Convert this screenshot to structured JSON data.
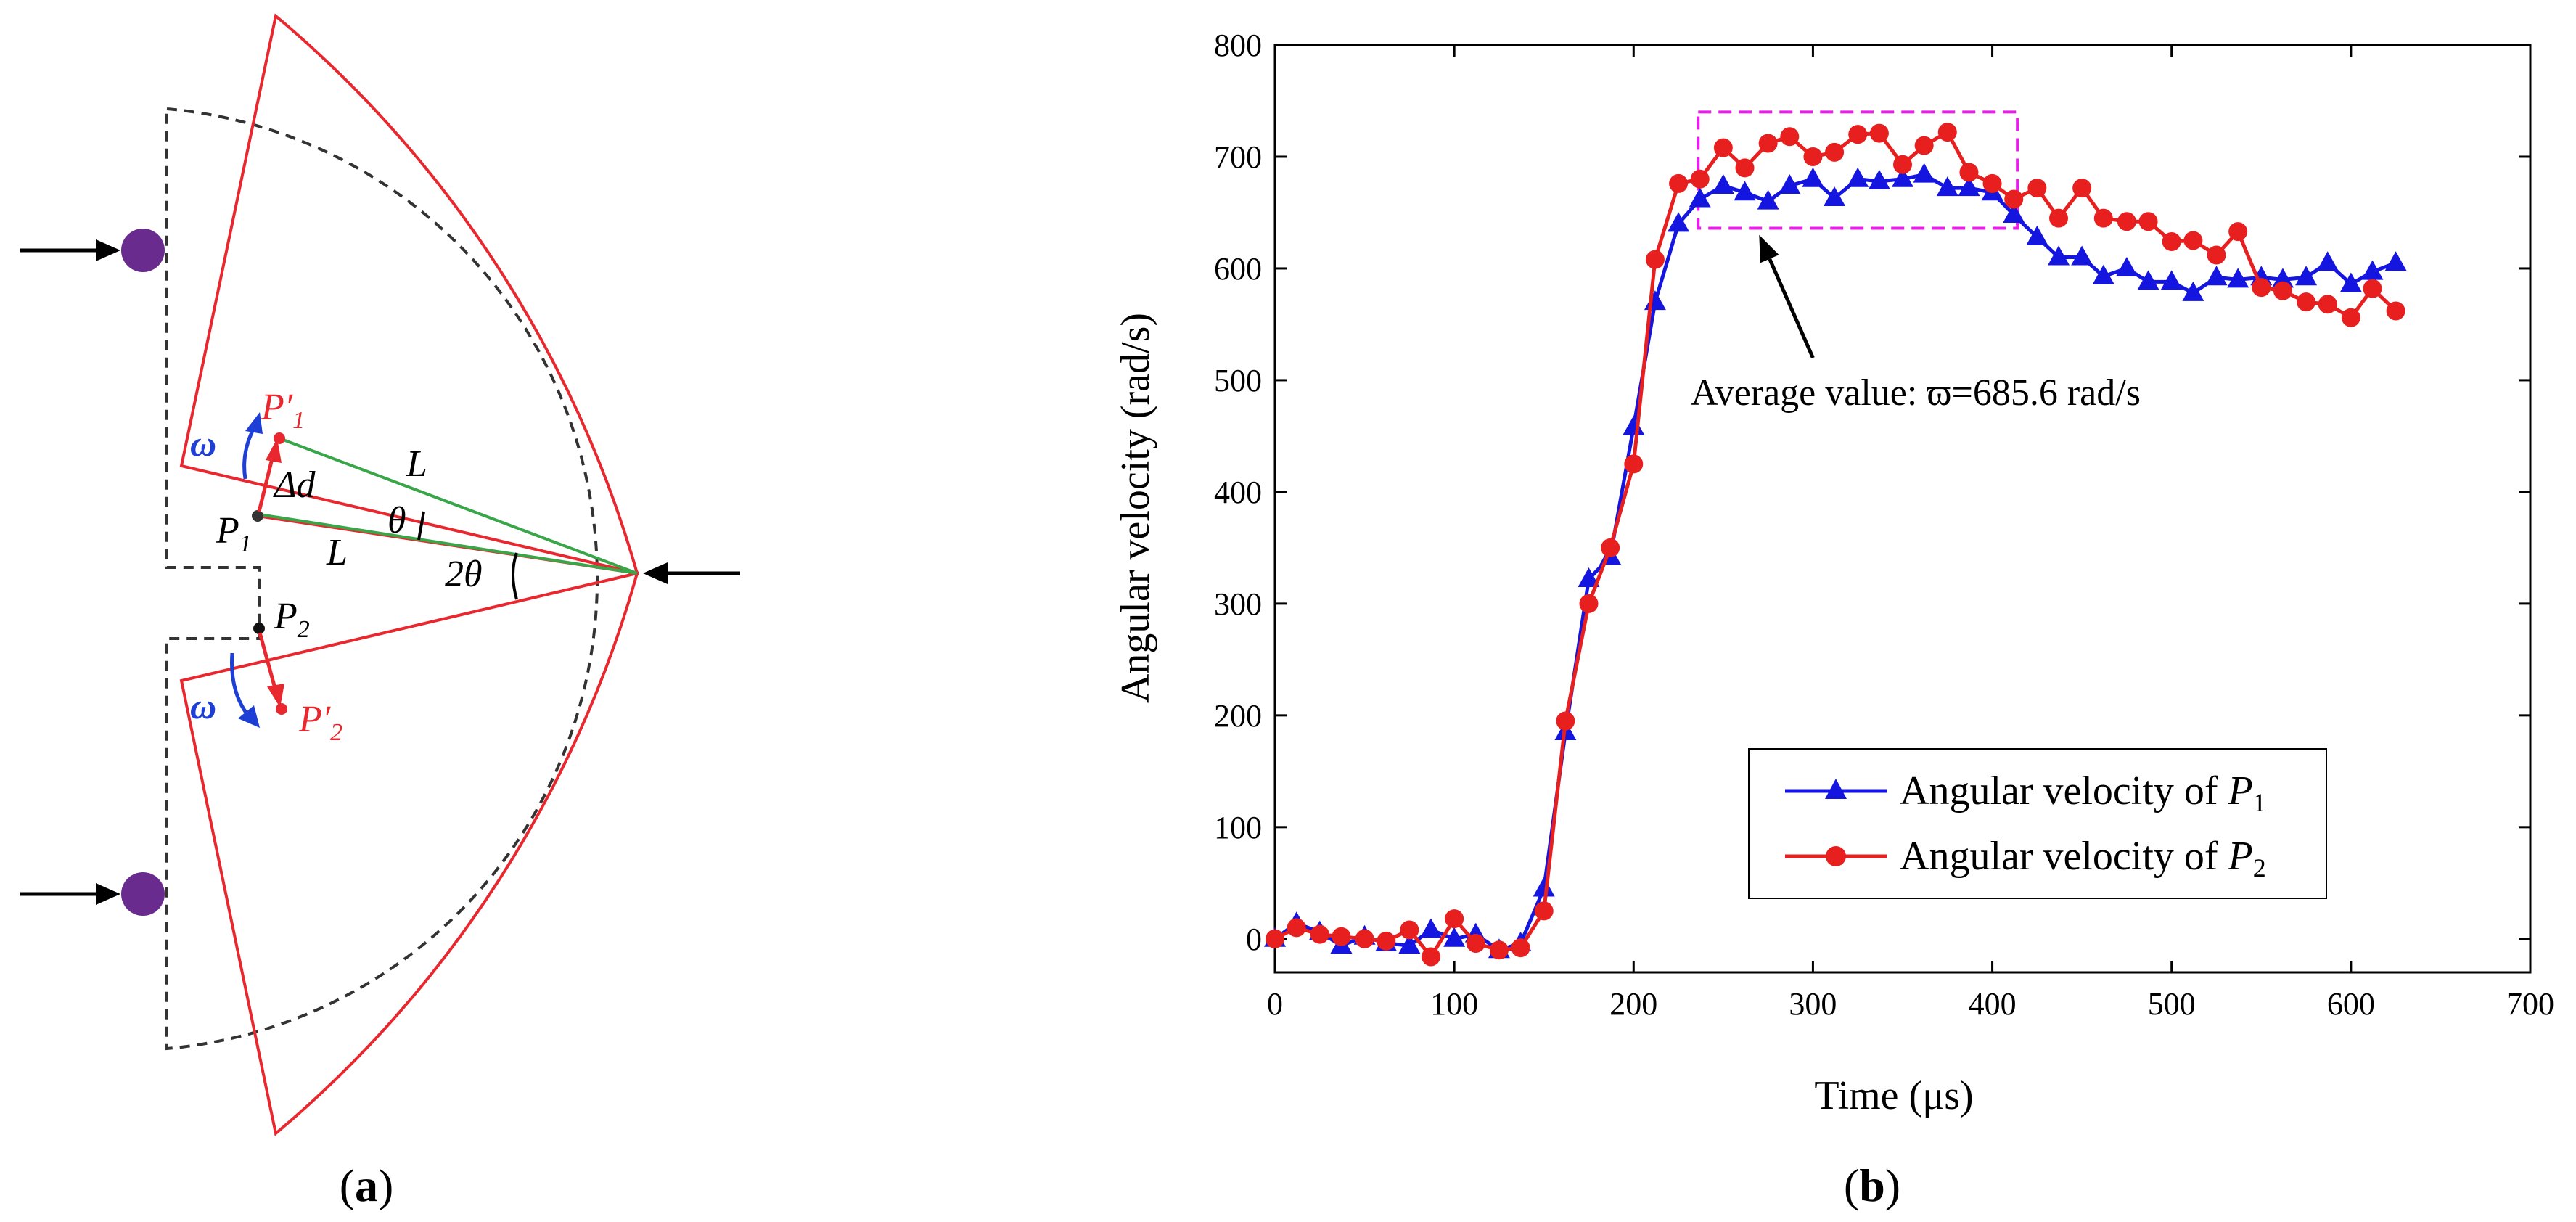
{
  "diagram": {
    "caption_open": "(",
    "caption_letter": "a",
    "caption_close": ")",
    "labels": {
      "omega": "ω",
      "p1prime": "P′",
      "p1prime_sub": "1",
      "p1": "P",
      "p1_sub": "1",
      "p2": "P",
      "p2_sub": "2",
      "p2prime": "P′",
      "p2prime_sub": "2",
      "delta_d": "Δd",
      "length_upper": "L",
      "length_lower": "L",
      "theta": "θ",
      "two_theta": "2θ"
    },
    "colors": {
      "sector": "#e8282e",
      "green": "#3aa64a",
      "blue": "#1e3fd6",
      "red": "#e8282e",
      "ball": "#6a2b8e",
      "dashed": "#333333"
    }
  },
  "chart_data": {
    "type": "line",
    "caption_open": "(",
    "caption_letter": "b",
    "caption_close": ")",
    "xlabel": "Time (μs)",
    "ylabel": "Angular velocity (rad/s)",
    "xlim": [
      0,
      700
    ],
    "ylim": [
      -30,
      800
    ],
    "xticks": [
      "0",
      "100",
      "200",
      "300",
      "400",
      "500",
      "600",
      "700"
    ],
    "yticks": [
      "0",
      "100",
      "200",
      "300",
      "400",
      "500",
      "600",
      "700",
      "800"
    ],
    "legend_location": "lower-right",
    "annotation": {
      "text": "Average value: ϖ=685.6 rad/s",
      "box_x": [
        236,
        414
      ],
      "box_y": [
        636,
        740
      ],
      "arrow_from": [
        300,
        520
      ],
      "arrow_to": [
        270,
        630
      ]
    },
    "series": [
      {
        "name": "Angular velocity of ",
        "italic": "P",
        "subscript": "1",
        "color": "#1515e0",
        "marker": "triangle",
        "x": [
          0,
          12,
          25,
          37,
          50,
          62,
          75,
          87,
          100,
          112,
          125,
          137,
          150,
          162,
          175,
          187,
          200,
          212,
          225,
          237,
          250,
          262,
          275,
          287,
          300,
          312,
          325,
          337,
          350,
          362,
          375,
          387,
          400,
          412,
          425,
          437,
          450,
          462,
          475,
          487,
          500,
          512,
          525,
          537,
          550,
          562,
          575,
          587,
          600,
          612,
          625
        ],
        "y": [
          0,
          14,
          6,
          -6,
          2,
          -4,
          -6,
          8,
          0,
          4,
          -10,
          -4,
          45,
          185,
          322,
          342,
          458,
          570,
          640,
          662,
          674,
          668,
          660,
          674,
          680,
          663,
          680,
          678,
          680,
          684,
          672,
          672,
          668,
          648,
          628,
          610,
          610,
          593,
          600,
          588,
          588,
          578,
          592,
          590,
          592,
          590,
          592,
          605,
          586,
          597,
          605
        ]
      },
      {
        "name": "Angular velocity of ",
        "italic": "P",
        "subscript": "2",
        "color": "#e81f1f",
        "marker": "circle",
        "x": [
          0,
          12,
          25,
          37,
          50,
          62,
          75,
          87,
          100,
          112,
          125,
          137,
          150,
          162,
          175,
          187,
          200,
          212,
          225,
          237,
          250,
          262,
          275,
          287,
          300,
          312,
          325,
          337,
          350,
          362,
          375,
          387,
          400,
          412,
          425,
          437,
          450,
          462,
          475,
          487,
          500,
          512,
          525,
          537,
          550,
          562,
          575,
          587,
          600,
          612,
          625
        ],
        "y": [
          0,
          10,
          4,
          2,
          0,
          -2,
          8,
          -16,
          18,
          -4,
          -10,
          -8,
          25,
          195,
          300,
          350,
          425,
          608,
          676,
          680,
          708,
          690,
          712,
          718,
          700,
          704,
          720,
          721,
          693,
          710,
          722,
          686,
          676,
          662,
          672,
          645,
          672,
          645,
          642,
          642,
          624,
          625,
          612,
          633,
          583,
          580,
          570,
          568,
          556,
          582,
          562
        ]
      }
    ]
  }
}
